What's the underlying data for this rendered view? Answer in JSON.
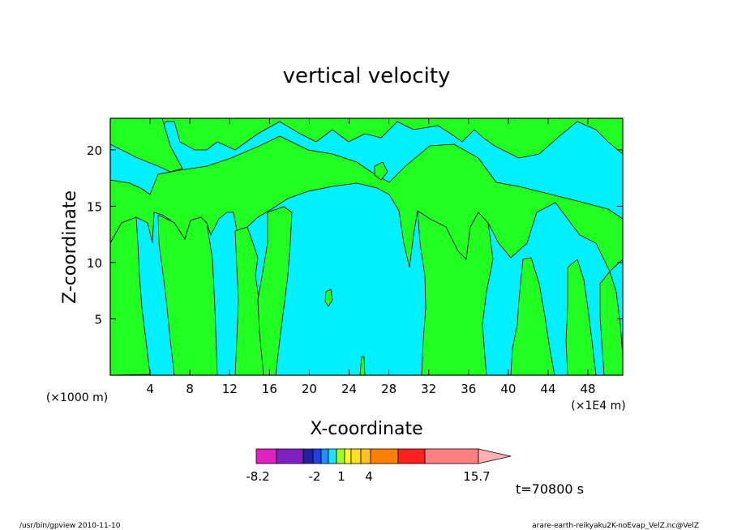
{
  "chart_data": {
    "type": "contour",
    "title": "vertical velocity",
    "xlabel": "X-coordinate",
    "ylabel": "Z-coordinate",
    "x_units_left": "(×1000 m)",
    "x_units_right": "(×1E4 m)",
    "xlim": [
      0,
      51.5
    ],
    "ylim": [
      0,
      22.8
    ],
    "xticks": [
      4,
      8,
      12,
      16,
      20,
      24,
      28,
      32,
      36,
      40,
      44,
      48
    ],
    "yticks": [
      5,
      10,
      15,
      20
    ],
    "colorbar": {
      "colors": [
        "#e020c0",
        "#8020c0",
        "#2020a0",
        "#2040e0",
        "#2090ff",
        "#20e0ff",
        "#a0ff20",
        "#ffff20",
        "#ffe020",
        "#ffc020",
        "#ff8000",
        "#ff2020",
        "#ff8080"
      ],
      "arrow_color": "#ffb0b0",
      "labels": [
        "-8.2",
        "-2",
        "1",
        "4",
        "15.7"
      ]
    },
    "field_colors": {
      "positive": "#20ff20",
      "negative": "#00f0ff"
    },
    "time_label": "t=70800 s"
  },
  "footer": {
    "left": "/usr/bin/gpview   2010-11-10",
    "right": "arare-earth-reikyaku2K-noEvap_VelZ.nc@VelZ"
  }
}
